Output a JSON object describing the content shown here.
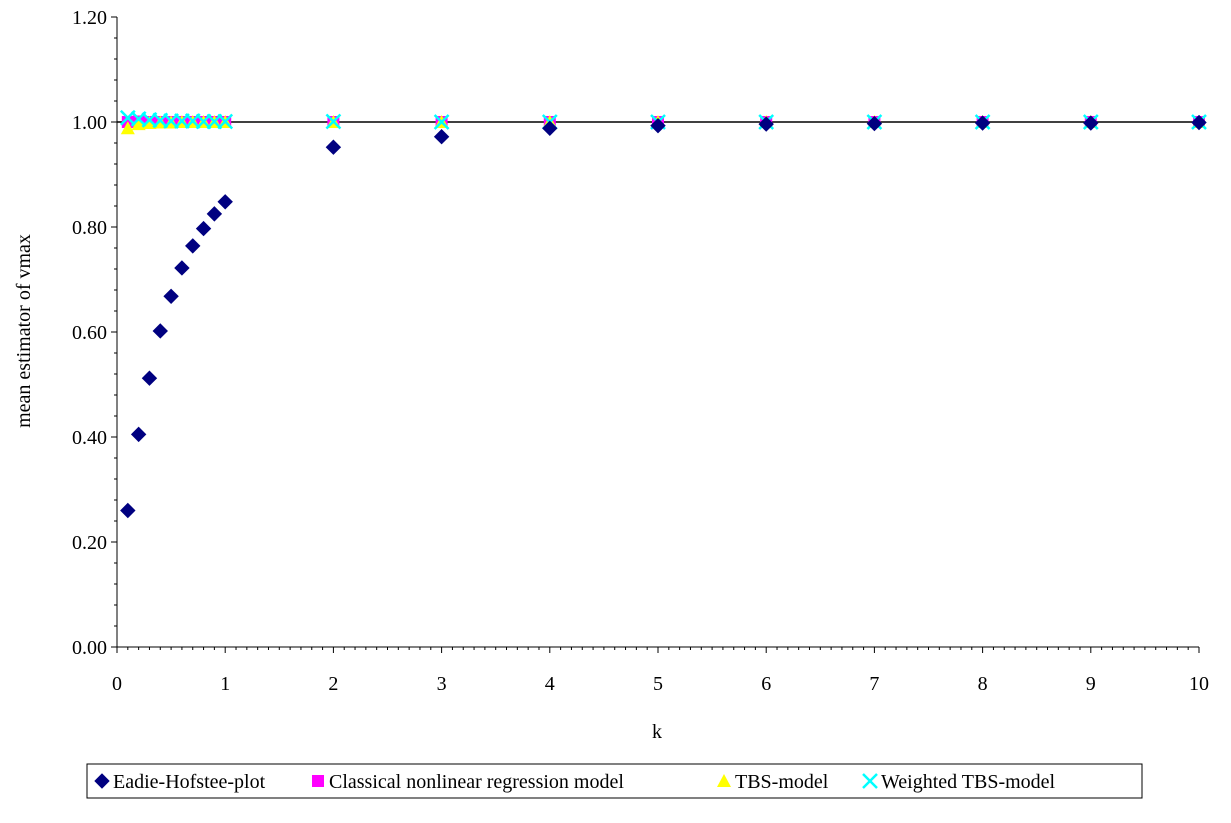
{
  "chart_data": {
    "type": "scatter",
    "title": "",
    "xlabel": "k",
    "ylabel": "mean estimator of vmax",
    "xlim": [
      0,
      10
    ],
    "ylim": [
      0,
      1.2
    ],
    "x_ticks": [
      "0",
      "1",
      "2",
      "3",
      "4",
      "5",
      "6",
      "7",
      "8",
      "9",
      "10"
    ],
    "y_ticks": [
      "0.00",
      "0.20",
      "0.40",
      "0.60",
      "0.80",
      "1.00",
      "1.20"
    ],
    "reference_line": {
      "y": 1.0,
      "color": "#000000"
    },
    "grid": false,
    "legend_position": "bottom",
    "x": [
      0.1,
      0.2,
      0.3,
      0.4,
      0.5,
      0.6,
      0.7,
      0.8,
      0.9,
      1,
      2,
      3,
      4,
      5,
      6,
      7,
      8,
      9,
      10
    ],
    "series": [
      {
        "name": "Eadie-Hofstee-plot",
        "marker": "diamond",
        "color": "#000080",
        "values": [
          0.26,
          0.405,
          0.512,
          0.602,
          0.668,
          0.722,
          0.764,
          0.797,
          0.825,
          0.848,
          0.952,
          0.972,
          0.988,
          0.993,
          0.996,
          0.997,
          0.998,
          0.998,
          0.999
        ]
      },
      {
        "name": "Classical nonlinear regression model",
        "marker": "square",
        "color": "#ff00ff",
        "values": [
          1.0,
          1.001,
          1.0,
          1.0,
          1.0,
          1.0,
          1.0,
          1.0,
          1.0,
          1.0,
          1.0,
          1.0,
          1.0,
          1.0,
          1.0,
          1.0,
          1.0,
          1.0,
          1.0
        ]
      },
      {
        "name": "TBS-model",
        "marker": "triangle",
        "color": "#ffff00",
        "values": [
          0.988,
          0.996,
          0.998,
          0.999,
          0.999,
          1.0,
          1.0,
          1.0,
          1.0,
          1.0,
          1.0,
          1.0,
          1.0,
          1.0,
          1.0,
          1.0,
          1.0,
          1.0,
          1.0
        ]
      },
      {
        "name": "Weighted TBS-model",
        "marker": "x",
        "color": "#00ffff",
        "values": [
          1.008,
          1.006,
          1.004,
          1.003,
          1.002,
          1.002,
          1.002,
          1.001,
          1.001,
          1.001,
          1.001,
          1.0,
          1.0,
          1.0,
          1.0,
          1.0,
          1.0,
          1.0,
          1.0
        ]
      }
    ]
  }
}
